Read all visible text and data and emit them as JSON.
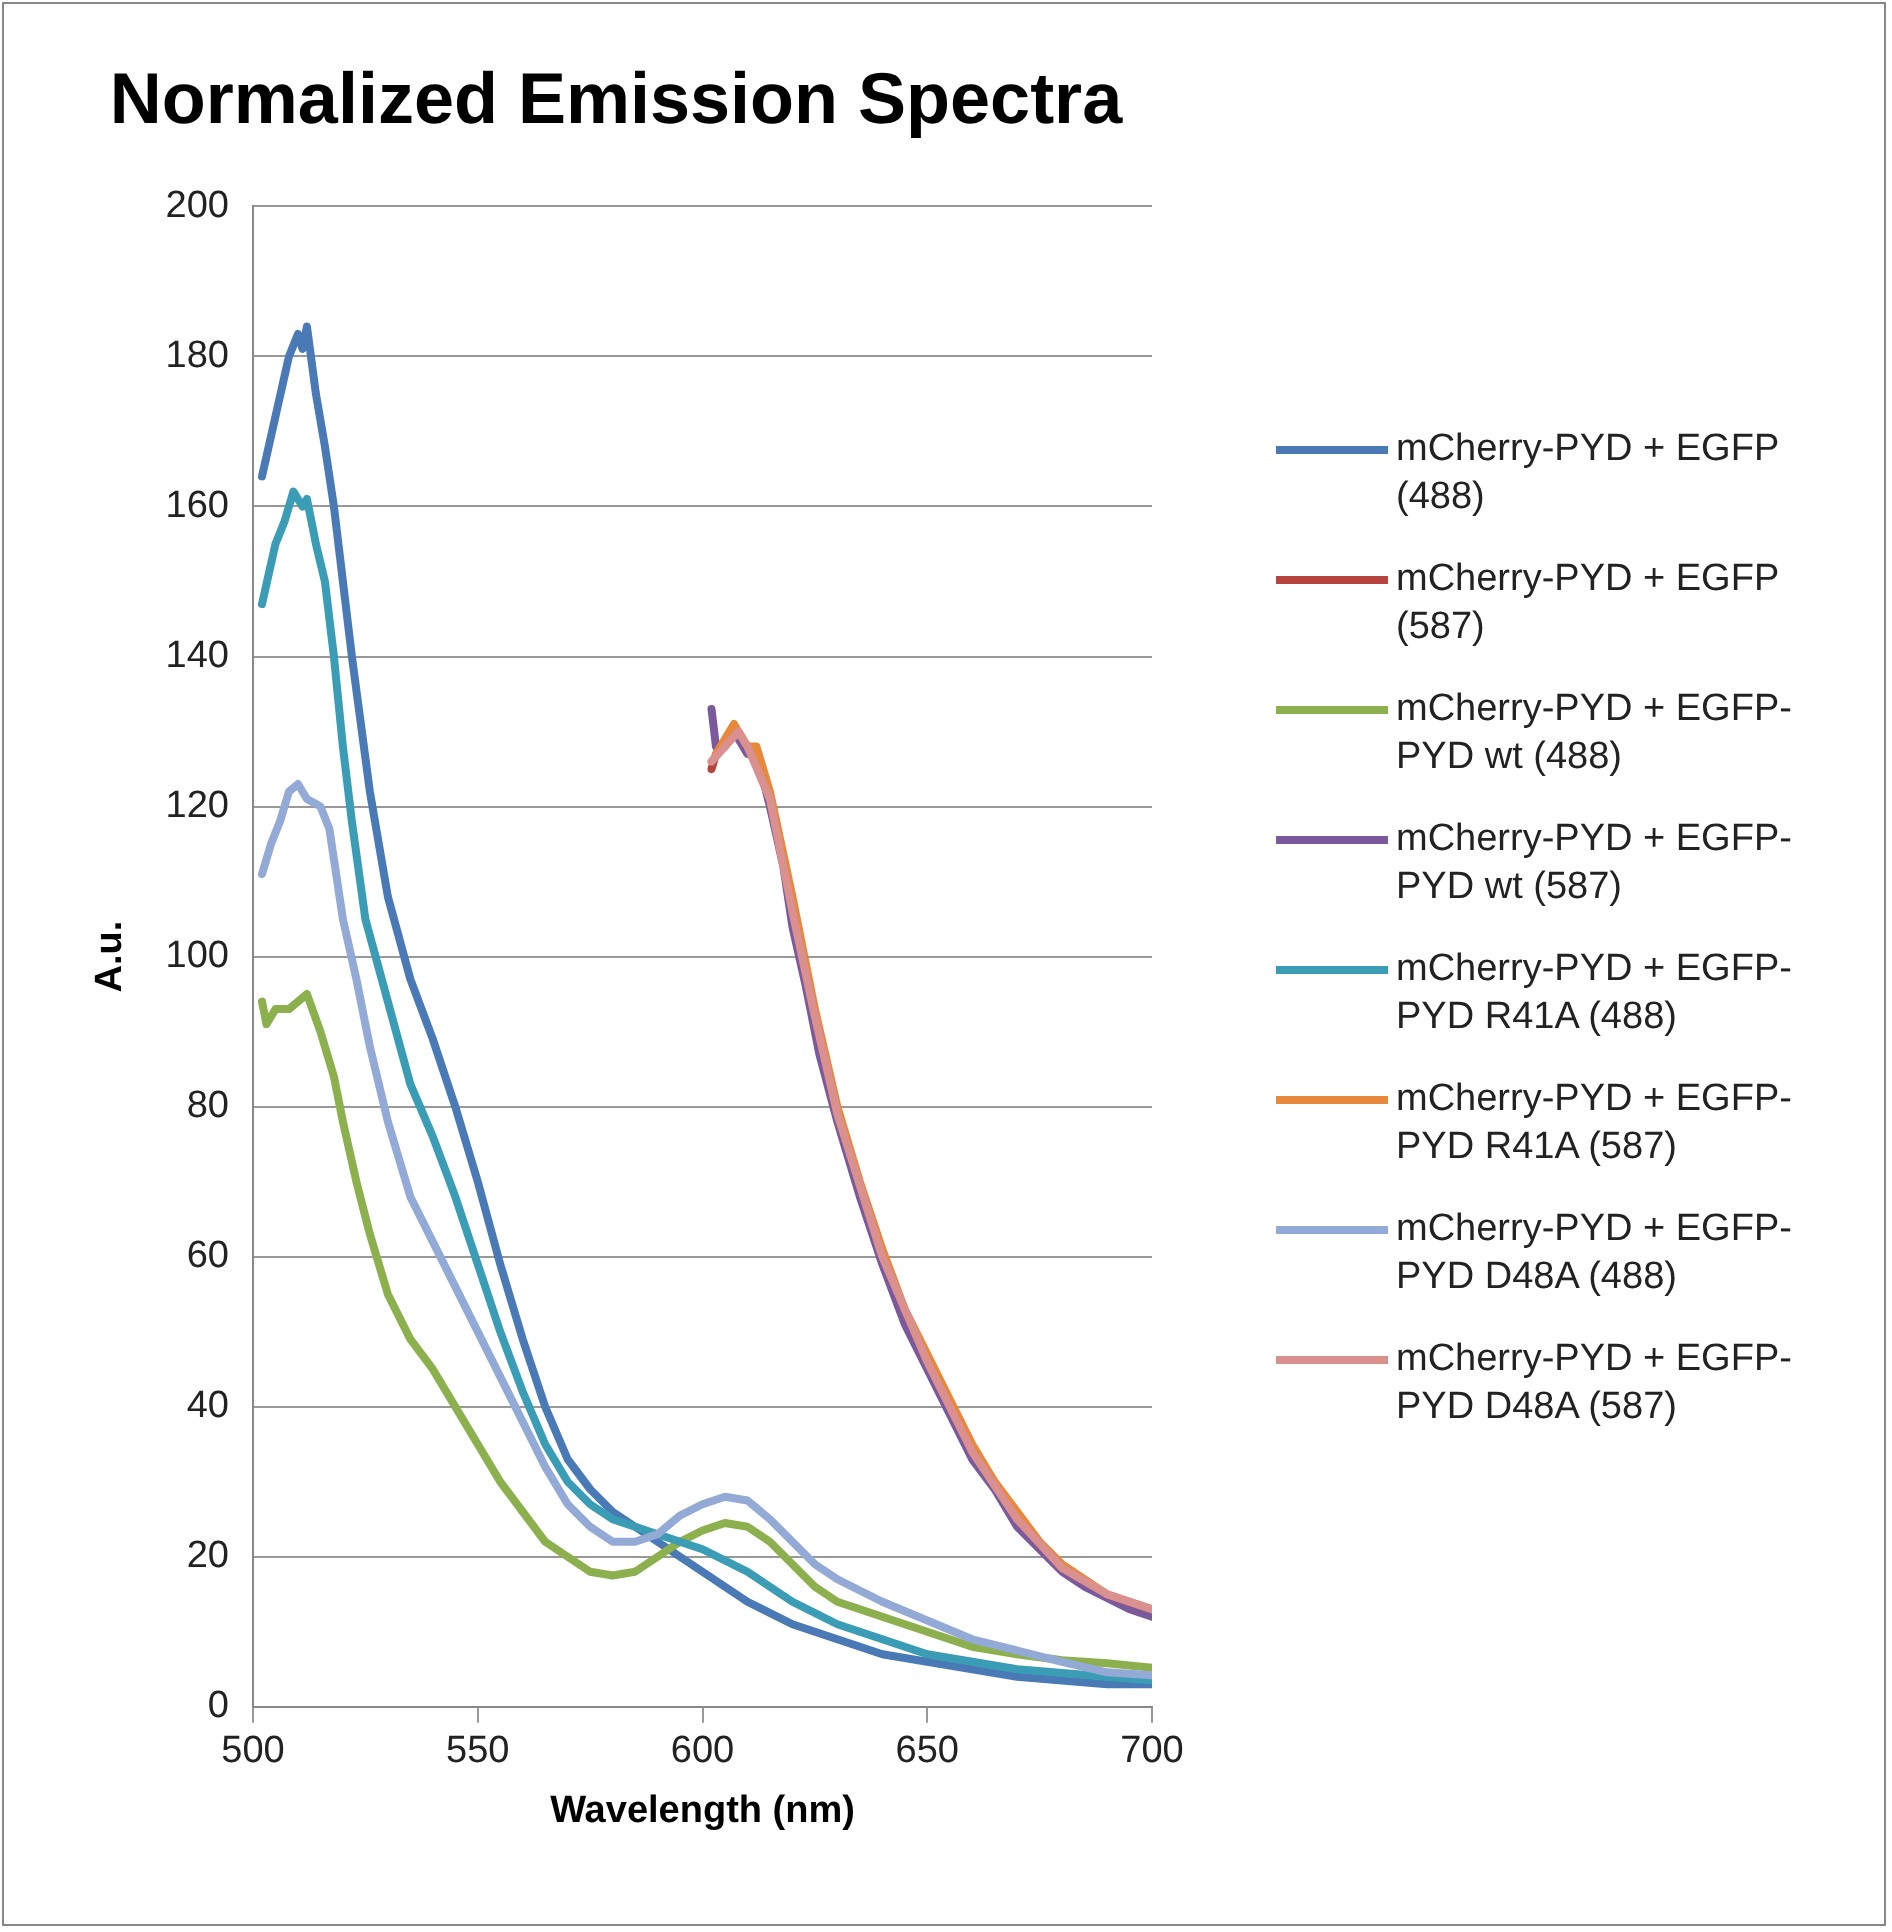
{
  "chart_data": {
    "type": "line",
    "title": "Normalized Emission Spectra",
    "xlabel": "Wavelength (nm)",
    "ylabel": "A.u.",
    "xlim": [
      500,
      700
    ],
    "xticks": [
      500,
      550,
      600,
      650,
      700
    ],
    "ylim": [
      0,
      200
    ],
    "yticks": [
      0,
      20,
      40,
      60,
      80,
      100,
      120,
      140,
      160,
      180,
      200
    ],
    "grid": "y",
    "legend": "right",
    "marker": "none",
    "line_style": "solid",
    "series": [
      {
        "name": "mCherry-PYD + EGFP (488)",
        "color": "#4a7ab5",
        "x": [
          502,
          505,
          508,
          510,
          511,
          512,
          514,
          516,
          518,
          520,
          522,
          524,
          526,
          530,
          535,
          540,
          545,
          550,
          555,
          560,
          565,
          570,
          575,
          580,
          585,
          590,
          600,
          610,
          620,
          630,
          640,
          650,
          660,
          670,
          680,
          690,
          700
        ],
        "values": [
          164,
          172,
          180,
          183,
          181,
          184,
          175,
          168,
          160,
          150,
          140,
          131,
          122,
          108,
          97,
          89,
          80,
          70,
          59,
          49,
          40,
          33,
          29,
          26,
          24,
          22,
          18,
          14,
          11,
          9,
          7,
          6,
          5,
          4,
          3.5,
          3,
          3
        ]
      },
      {
        "name": "mCherry-PYD + EGFP (587)",
        "color": "#b5443f",
        "x": [
          602,
          603
        ],
        "values": [
          125,
          127
        ]
      },
      {
        "name": "mCherry-PYD + EGFP-PYD wt (488)",
        "color": "#8cb04d",
        "x": [
          502,
          503,
          505,
          508,
          510,
          512,
          515,
          518,
          520,
          523,
          526,
          530,
          535,
          540,
          545,
          550,
          555,
          560,
          565,
          570,
          575,
          580,
          585,
          590,
          595,
          600,
          605,
          610,
          615,
          620,
          625,
          630,
          640,
          650,
          660,
          670,
          680,
          690,
          700
        ],
        "values": [
          94,
          91,
          93,
          93,
          94,
          95,
          90,
          84,
          78,
          70,
          63,
          55,
          49,
          45,
          40,
          35,
          30,
          26,
          22,
          20,
          18,
          17.5,
          18,
          20,
          22,
          23.5,
          24.5,
          24,
          22,
          19,
          16,
          14,
          12,
          10,
          8,
          7,
          6.2,
          5.8,
          5.2
        ]
      },
      {
        "name": "mCherry-PYD + EGFP-PYD wt (587)",
        "color": "#7a5a9c",
        "x": [
          602,
          603,
          605,
          607,
          610,
          612,
          615,
          618,
          620,
          623,
          626,
          630,
          635,
          640,
          645,
          650,
          655,
          660,
          665,
          670,
          675,
          680,
          685,
          690,
          695,
          700
        ],
        "values": [
          133,
          128,
          128,
          130,
          127,
          127,
          120,
          112,
          104,
          96,
          87,
          78,
          68,
          59,
          51,
          45,
          39,
          33,
          29,
          24,
          21,
          18,
          16,
          14.5,
          13,
          12
        ]
      },
      {
        "name": "mCherry-PYD + EGFP-PYD R41A (488)",
        "color": "#3a9db5",
        "x": [
          502,
          505,
          507,
          509,
          511,
          512,
          514,
          516,
          518,
          520,
          522,
          525,
          530,
          535,
          540,
          545,
          550,
          555,
          560,
          565,
          570,
          575,
          580,
          590,
          600,
          610,
          620,
          630,
          640,
          650,
          660,
          670,
          680,
          690,
          700
        ],
        "values": [
          147,
          155,
          158,
          162,
          160,
          161,
          155,
          150,
          140,
          128,
          118,
          105,
          94,
          83,
          76,
          68,
          59,
          50,
          42,
          35,
          30,
          27,
          25,
          23,
          21,
          18,
          14,
          11,
          9,
          7,
          6,
          5,
          4.5,
          4,
          3.5
        ]
      },
      {
        "name": "mCherry-PYD + EGFP-PYD R41A (587)",
        "color": "#e8883a",
        "x": [
          603,
          605,
          607,
          610,
          612,
          615,
          620,
          625,
          630,
          635,
          640,
          645,
          650,
          655,
          660,
          665,
          670,
          675,
          680,
          685,
          690,
          695,
          700
        ],
        "values": [
          127,
          129,
          131,
          128,
          128,
          122,
          108,
          93,
          80,
          70,
          61,
          53,
          47,
          41,
          35,
          30,
          26,
          22,
          19,
          17,
          15,
          14,
          13
        ]
      },
      {
        "name": "mCherry-PYD + EGFP-PYD D48A (488)",
        "color": "#93aad6",
        "x": [
          502,
          504,
          506,
          508,
          510,
          512,
          515,
          517,
          520,
          523,
          526,
          530,
          535,
          540,
          545,
          550,
          555,
          560,
          565,
          570,
          575,
          580,
          585,
          590,
          595,
          600,
          605,
          610,
          615,
          620,
          625,
          630,
          640,
          650,
          660,
          670,
          680,
          690,
          700
        ],
        "values": [
          111,
          115,
          118,
          122,
          123,
          121,
          120,
          117,
          105,
          97,
          88,
          78,
          68,
          62,
          56,
          50,
          44,
          38,
          32,
          27,
          24,
          22,
          22,
          23,
          25.5,
          27,
          28,
          27.5,
          25,
          22,
          19,
          17,
          14,
          11.5,
          9,
          7.5,
          6,
          4.6,
          4.2
        ]
      },
      {
        "name": "mCherry-PYD + EGFP-PYD D48A (587)",
        "color": "#d9908e",
        "x": [
          602,
          605,
          608,
          610,
          615,
          620,
          625,
          630,
          640,
          650,
          660,
          670,
          680,
          690,
          700
        ],
        "values": [
          126,
          128,
          130,
          128,
          121,
          106,
          92,
          79,
          60,
          46,
          34,
          25,
          18.5,
          15,
          13
        ]
      }
    ]
  }
}
